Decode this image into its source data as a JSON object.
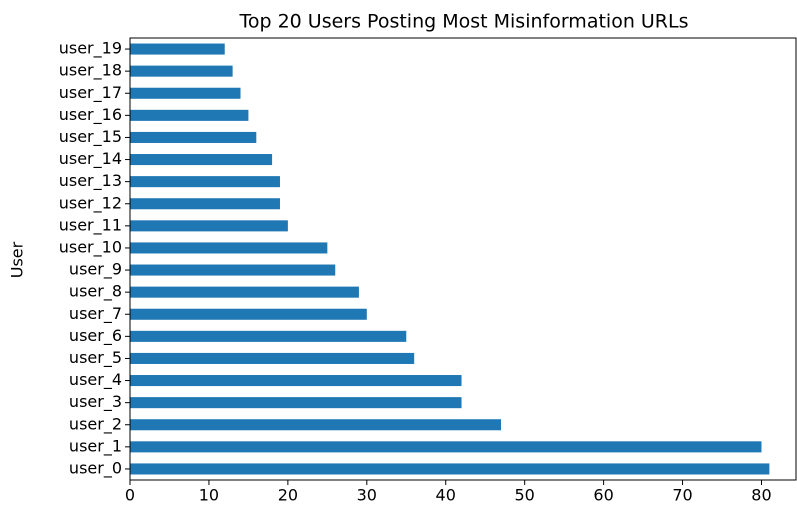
{
  "chart_data": {
    "type": "barh",
    "title": "Top 20 Users Posting Most Misinformation URLs",
    "ylabel": "User",
    "categories": [
      "user_0",
      "user_1",
      "user_2",
      "user_3",
      "user_4",
      "user_5",
      "user_6",
      "user_7",
      "user_8",
      "user_9",
      "user_10",
      "user_11",
      "user_12",
      "user_13",
      "user_14",
      "user_15",
      "user_16",
      "user_17",
      "user_18",
      "user_19"
    ],
    "values": [
      81,
      80,
      47,
      42,
      42,
      36,
      35,
      30,
      29,
      26,
      25,
      20,
      19,
      19,
      18,
      16,
      15,
      14,
      13,
      12
    ],
    "color": "#1f77b4",
    "xlim": [
      0,
      84.5
    ],
    "xticks": [
      0,
      10,
      20,
      30,
      40,
      50,
      60,
      70,
      80
    ],
    "grid": false
  }
}
